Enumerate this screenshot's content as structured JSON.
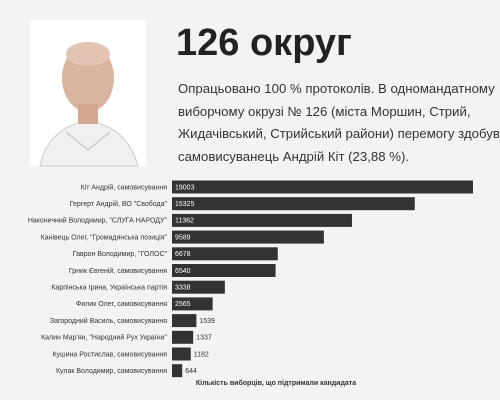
{
  "header": {
    "title": "126 округ",
    "description": [
      "Опрацьовано 100 % протоколів. В одномандатному",
      "виборчому окрузі № 126 (міста Моршин, Стрий,",
      "Жидачівський, Стрийський райони) перемогу здобув",
      "самовисуванець Андрій Кіт (23,88 %)."
    ]
  },
  "chart_data": {
    "type": "hbar",
    "categories": [
      "Кіт Андрій, самовисування",
      "Гергерт Андрій, ВО \"Свобода\"",
      "Наконечний Володимир, \"СЛУГА НАРОДУ\"",
      "Канівець Олег, \"Громадянська позиція\"",
      "Гаврон Володимир, \"ГОЛОС\"",
      "Грник Євгеній, самовисування",
      "Карпінська Ірина, Українська партія",
      "Филик Олег, самовисування",
      "Загородний Василь, самовисування",
      "Калин Мар'ян, \"Народний Рух України\"",
      "Кушина Ростислав, самовисування",
      "Кулак Володимир, самовисування"
    ],
    "values": [
      19003,
      15325,
      11362,
      9589,
      6678,
      6540,
      3338,
      2565,
      1539,
      1337,
      1182,
      644
    ],
    "color": "#333333",
    "x_label": "Кількість виборців, що підтримали кандидата"
  }
}
